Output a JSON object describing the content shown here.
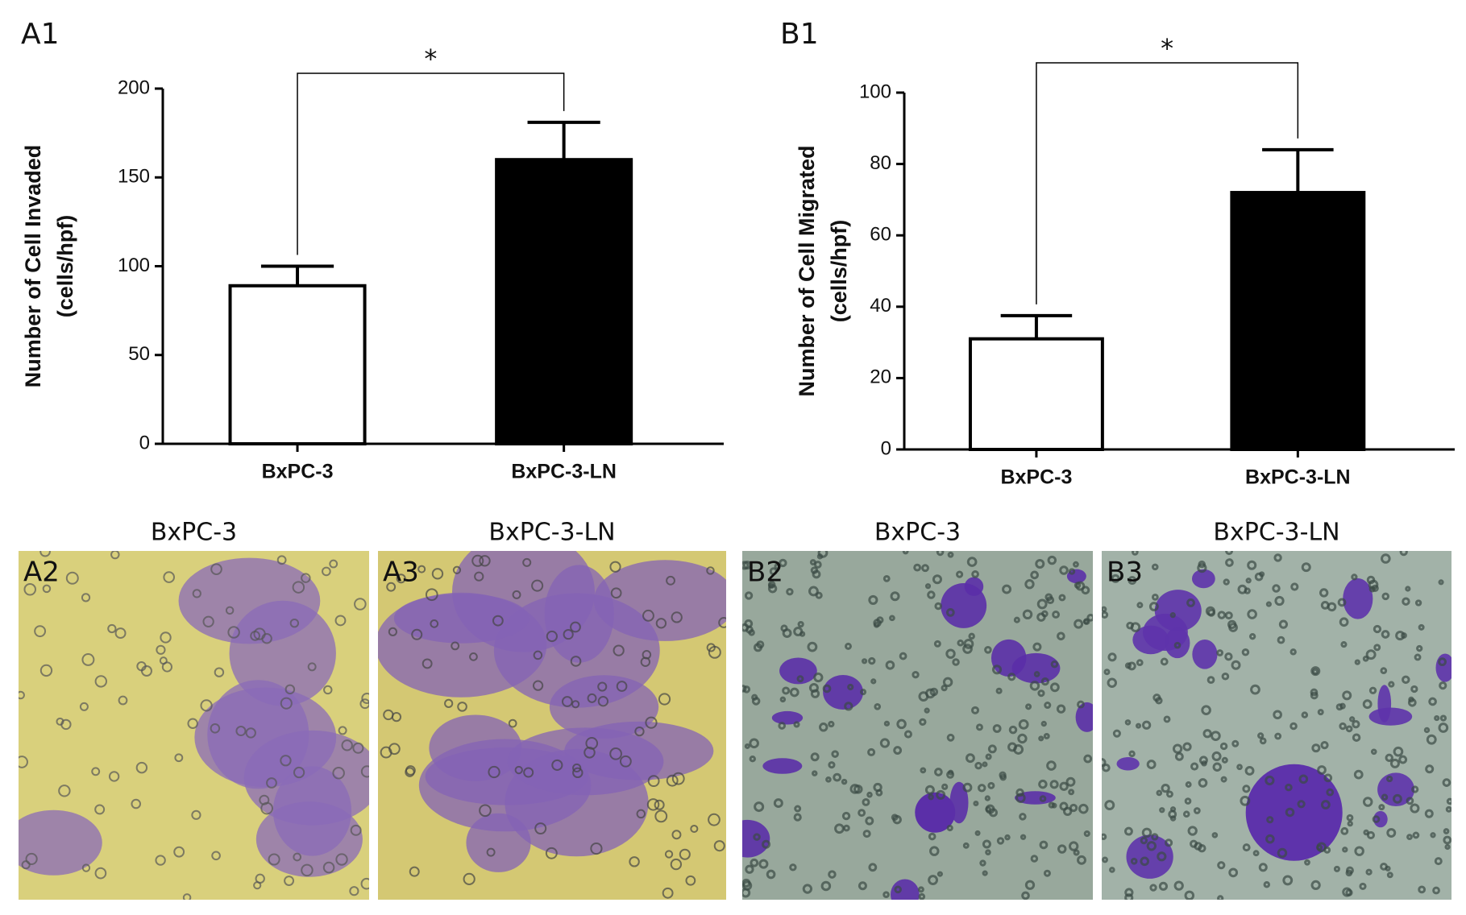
{
  "chart_data": [
    {
      "type": "bar",
      "panel": "A1",
      "ylabel": [
        "Number of Cell Invaded",
        "(cells/hpf)"
      ],
      "categories": [
        "BxPC-3",
        "BxPC-3-LN"
      ],
      "values": [
        89,
        160
      ],
      "errors": [
        11,
        21
      ],
      "colors": [
        "#ffffff",
        "#000000"
      ],
      "ylim": [
        0,
        200
      ],
      "yticks": [
        0,
        50,
        100,
        150,
        200
      ],
      "significance": "*"
    },
    {
      "type": "bar",
      "panel": "B1",
      "ylabel": [
        "Number of Cell Migrated",
        "(cells/hpf)"
      ],
      "categories": [
        "BxPC-3",
        "BxPC-3-LN"
      ],
      "values": [
        31,
        72
      ],
      "errors": [
        6.5,
        12
      ],
      "colors": [
        "#ffffff",
        "#000000"
      ],
      "ylim": [
        0,
        100
      ],
      "yticks": [
        0,
        20,
        40,
        60,
        80,
        100
      ],
      "significance": "*"
    }
  ],
  "images": [
    {
      "title": "BxPC-3",
      "label": "A2"
    },
    {
      "title": "BxPC-3-LN",
      "label": "A3"
    },
    {
      "title": "BxPC-3",
      "label": "B2"
    },
    {
      "title": "BxPC-3-LN",
      "label": "B3"
    }
  ]
}
